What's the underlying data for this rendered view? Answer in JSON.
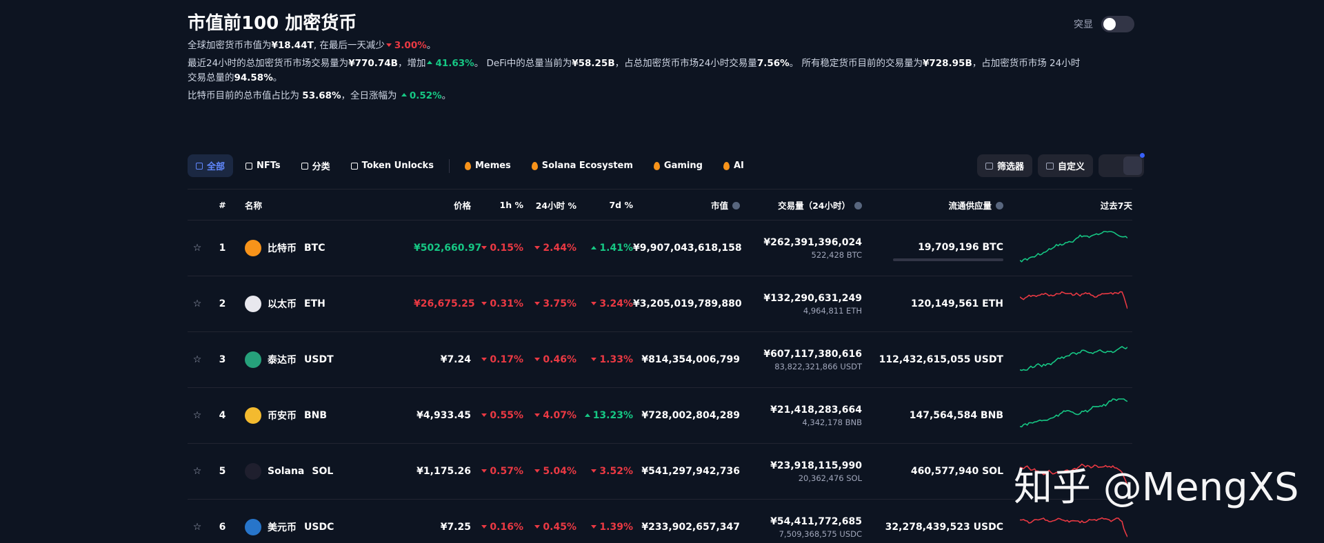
{
  "header": {
    "title": "市值前100 加密货币",
    "toggle_label": "突显"
  },
  "summary": {
    "lines": [
      [
        {
          "text": "全球加密货币市值为",
          "style": "plain"
        },
        {
          "text": "¥18.44T",
          "style": "bold"
        },
        {
          "text": ", 在最后一天减少",
          "style": "plain"
        },
        {
          "text": "3.00%",
          "style": "down"
        },
        {
          "text": "。",
          "style": "plain"
        }
      ],
      [
        {
          "text": "最近24小时的总加密货币市场交易量为",
          "style": "plain"
        },
        {
          "text": "¥770.74B",
          "style": "bold"
        },
        {
          "text": "，增加",
          "style": "plain"
        },
        {
          "text": "41.63%",
          "style": "up"
        },
        {
          "text": "。 DeFi中的总量当前为",
          "style": "plain"
        },
        {
          "text": "¥58.25B",
          "style": "bold"
        },
        {
          "text": "，占总加密货币市场24小时交易量",
          "style": "plain"
        },
        {
          "text": "7.56%",
          "style": "bold"
        },
        {
          "text": "。 所有稳定货币目前的交易量为",
          "style": "plain"
        },
        {
          "text": "¥728.95B",
          "style": "bold"
        },
        {
          "text": "，占加密货币市场 24小时交易总量的",
          "style": "plain"
        },
        {
          "text": "94.58%",
          "style": "bold"
        },
        {
          "text": "。",
          "style": "plain"
        }
      ],
      [
        {
          "text": "比特币目前的总市值占比为 ",
          "style": "plain"
        },
        {
          "text": "53.68%",
          "style": "bold"
        },
        {
          "text": "，全日涨幅为 ",
          "style": "plain"
        },
        {
          "text": "0.52%",
          "style": "up"
        },
        {
          "text": "。",
          "style": "plain"
        }
      ]
    ]
  },
  "tabs": [
    "全部",
    "NFTs",
    "分类",
    "Token Unlocks",
    "Memes",
    "Solana Ecosystem",
    "Gaming",
    "AI"
  ],
  "buttons": [
    "筛选器",
    "自定义"
  ],
  "table": {
    "columns": [
      "#",
      "名称",
      "价格",
      "1h %",
      "24小时 %",
      "7d %",
      "市值",
      "交易量（24小时）",
      "流通供应量",
      "过去7天"
    ],
    "rows": [
      {
        "rank": "1",
        "name": "比特币",
        "symbol": "BTC",
        "price": "¥502,660.97",
        "price_trend": "up",
        "h1": {
          "text": "0.15%",
          "dir": "down"
        },
        "h24": {
          "text": "2.44%",
          "dir": "down"
        },
        "d7": {
          "text": "1.41%",
          "dir": "up"
        },
        "market_cap": "¥9,907,043,618,158",
        "volume": "¥262,391,396,024",
        "volume_coin": "522,428 BTC",
        "supply": "19,709,196 BTC",
        "spark": "up"
      },
      {
        "rank": "2",
        "name": "以太币",
        "symbol": "ETH",
        "price": "¥26,675.25",
        "price_trend": "down",
        "h1": {
          "text": "0.31%",
          "dir": "down"
        },
        "h24": {
          "text": "3.75%",
          "dir": "down"
        },
        "d7": {
          "text": "3.24%",
          "dir": "down"
        },
        "market_cap": "¥3,205,019,789,880",
        "volume": "¥132,290,631,249",
        "volume_coin": "4,964,811 ETH",
        "supply": "120,149,561 ETH",
        "spark": "down"
      },
      {
        "rank": "3",
        "name": "泰达币",
        "symbol": "USDT",
        "price": "¥7.24",
        "price_trend": "plain",
        "h1": {
          "text": "0.17%",
          "dir": "down"
        },
        "h24": {
          "text": "0.46%",
          "dir": "down"
        },
        "d7": {
          "text": "1.33%",
          "dir": "down"
        },
        "market_cap": "¥814,354,006,799",
        "volume": "¥607,117,380,616",
        "volume_coin": "83,822,321,866 USDT",
        "supply": "112,432,615,055 USDT",
        "spark": "up"
      },
      {
        "rank": "4",
        "name": "币安币",
        "symbol": "BNB",
        "price": "¥4,933.45",
        "price_trend": "plain",
        "h1": {
          "text": "0.55%",
          "dir": "down"
        },
        "h24": {
          "text": "4.07%",
          "dir": "down"
        },
        "d7": {
          "text": "13.23%",
          "dir": "up"
        },
        "market_cap": "¥728,002,804,289",
        "volume": "¥21,418,283,664",
        "volume_coin": "4,342,178 BNB",
        "supply": "147,564,584 BNB",
        "spark": "up"
      },
      {
        "rank": "5",
        "name": "Solana",
        "symbol": "SOL",
        "price": "¥1,175.26",
        "price_trend": "plain",
        "h1": {
          "text": "0.57%",
          "dir": "down"
        },
        "h24": {
          "text": "5.04%",
          "dir": "down"
        },
        "d7": {
          "text": "3.52%",
          "dir": "down"
        },
        "market_cap": "¥541,297,942,736",
        "volume": "¥23,918,115,990",
        "volume_coin": "20,362,476 SOL",
        "supply": "460,577,940 SOL",
        "spark": "down"
      },
      {
        "rank": "6",
        "name": "美元币",
        "symbol": "USDC",
        "price": "¥7.25",
        "price_trend": "plain",
        "h1": {
          "text": "0.16%",
          "dir": "down"
        },
        "h24": {
          "text": "0.45%",
          "dir": "down"
        },
        "d7": {
          "text": "1.39%",
          "dir": "down"
        },
        "market_cap": "¥233,902,657,347",
        "volume": "¥54,411,772,685",
        "volume_coin": "7,509,368,575 USDC",
        "supply": "32,278,439,523 USDC",
        "spark": "down"
      }
    ]
  },
  "watermark": "知乎 @MengXS"
}
